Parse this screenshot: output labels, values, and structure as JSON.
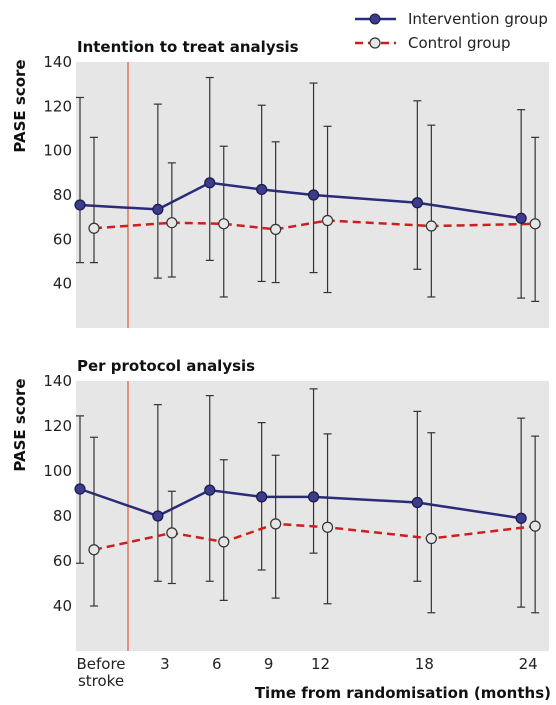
{
  "legend": {
    "intervention": "Intervention group",
    "control": "Control group"
  },
  "colors": {
    "intervention_line": "#2b2b7a",
    "intervention_marker": "#3c3c8c",
    "control_line": "#cc1f1f",
    "control_marker": "#e6e6e6",
    "error_bar": "#333333",
    "randomisation_line": "#e05a3a",
    "panel_background": "#e6e6e6"
  },
  "x_axis": {
    "label": "Time from randomisation (months)",
    "tick_labels": [
      "Before stroke",
      "3",
      "6",
      "9",
      "12",
      "18",
      "24"
    ]
  },
  "chart_data": [
    {
      "type": "line",
      "title": "Intention to treat analysis",
      "ylabel": "PASE score",
      "ylim": [
        20,
        140
      ],
      "yticks": [
        40,
        60,
        80,
        100,
        120,
        140
      ],
      "grid": false,
      "legend_position": "top-right",
      "categories": [
        "Before stroke",
        "3",
        "6",
        "9",
        "12",
        "18",
        "24"
      ],
      "series": [
        {
          "name": "Intervention group",
          "x": [
            -1.5,
            3,
            6,
            9,
            12,
            18,
            24
          ],
          "values": [
            75.5,
            73.5,
            85.5,
            82.5,
            80,
            76.5,
            69.5
          ],
          "err_low": [
            49.5,
            42.5,
            50.5,
            41,
            45,
            46.5,
            33.5
          ],
          "err_high": [
            124,
            121,
            133,
            120.5,
            130.5,
            122.5,
            118.5
          ]
        },
        {
          "name": "Control group",
          "x": [
            -1.5,
            3,
            6,
            9,
            12,
            18,
            24
          ],
          "values": [
            65,
            67.5,
            67,
            64.5,
            68.5,
            66,
            67
          ],
          "err_low": [
            49.5,
            43,
            34,
            40.5,
            36,
            34,
            32
          ],
          "err_high": [
            106,
            94.5,
            102,
            104,
            111,
            111.5,
            106
          ]
        }
      ]
    },
    {
      "type": "line",
      "title": "Per protocol analysis",
      "ylabel": "PASE score",
      "ylim": [
        20,
        140
      ],
      "yticks": [
        40,
        60,
        80,
        100,
        120,
        140
      ],
      "grid": false,
      "categories": [
        "Before stroke",
        "3",
        "6",
        "9",
        "12",
        "18",
        "24"
      ],
      "series": [
        {
          "name": "Intervention group",
          "x": [
            -1.5,
            3,
            6,
            9,
            12,
            18,
            24
          ],
          "values": [
            92,
            80,
            91.5,
            88.5,
            88.5,
            86,
            79
          ],
          "err_low": [
            59,
            51,
            51,
            56,
            63.5,
            51,
            39.5
          ],
          "err_high": [
            124.5,
            129.5,
            133.5,
            121.5,
            136.5,
            126.5,
            123.5
          ]
        },
        {
          "name": "Control group",
          "x": [
            -1.5,
            3,
            6,
            9,
            12,
            18,
            24
          ],
          "values": [
            65,
            72.5,
            68.5,
            76.5,
            75,
            70,
            75.5
          ],
          "err_low": [
            40,
            50,
            42.5,
            43.5,
            41,
            37,
            37
          ],
          "err_high": [
            115,
            91,
            105,
            107,
            116.5,
            117,
            115.5
          ]
        }
      ]
    }
  ]
}
